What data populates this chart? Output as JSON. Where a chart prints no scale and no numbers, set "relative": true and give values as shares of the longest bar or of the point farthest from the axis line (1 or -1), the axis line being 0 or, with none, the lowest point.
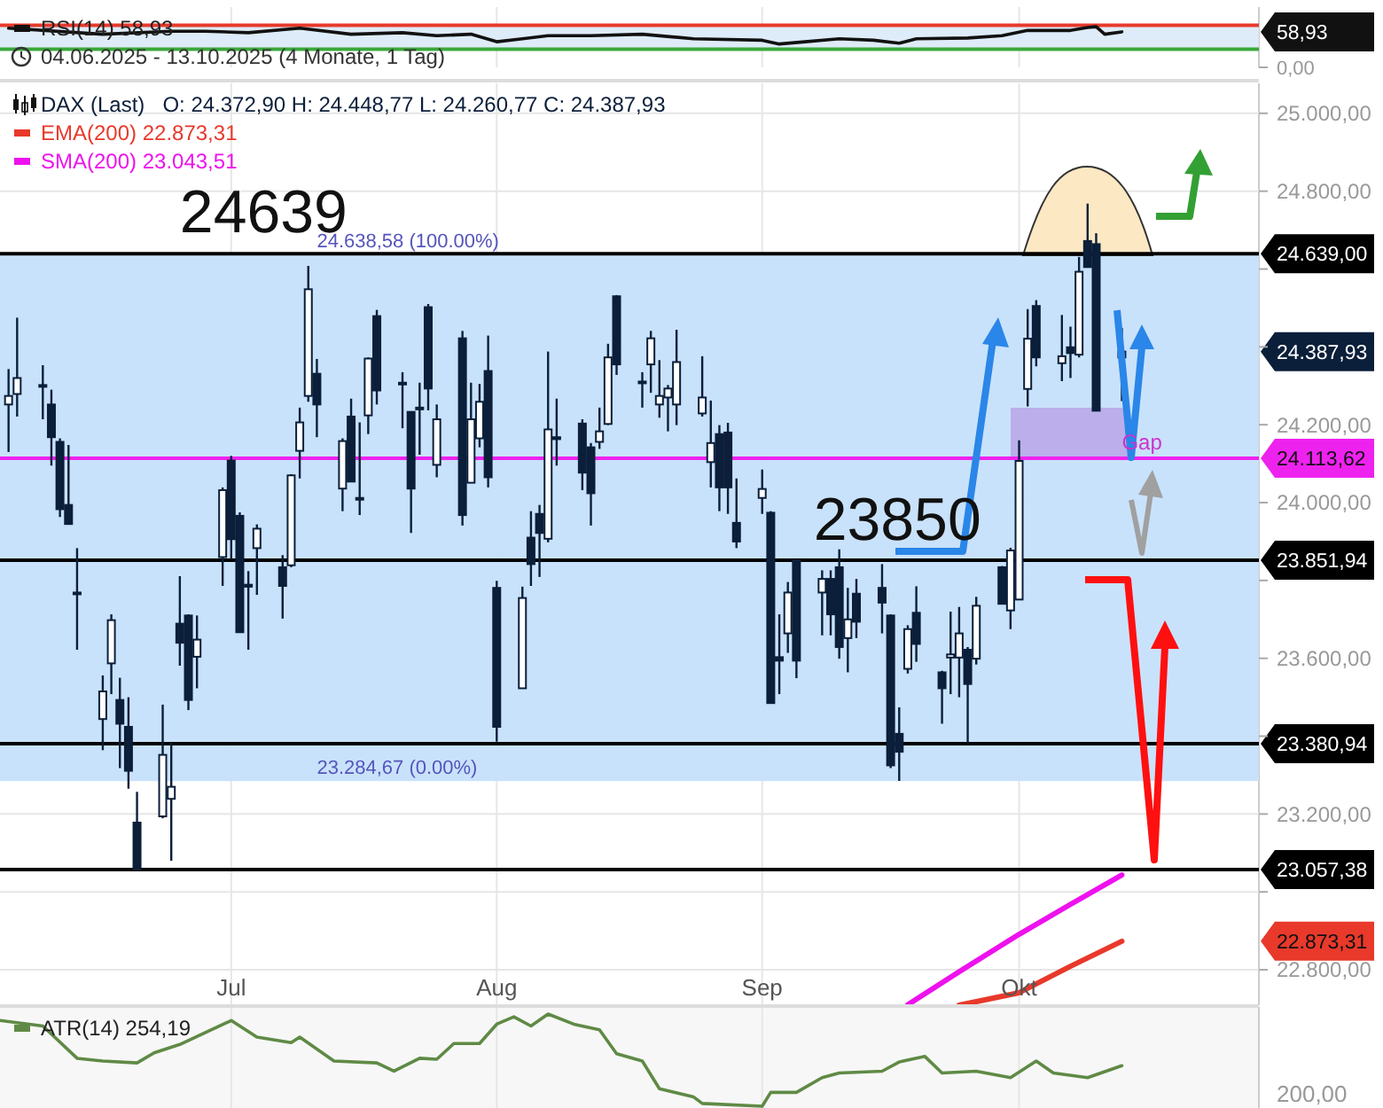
{
  "chart_data": [
    {
      "type": "line",
      "xlim": [
        "2025-06-04",
        "2025-10-29"
      ],
      "ylim": [
        0,
        100
      ],
      "yticks": [
        {
          "value": 0,
          "label": "0,00"
        },
        {
          "value": 58.93,
          "label": "58,93"
        }
      ],
      "xticks": [
        {
          "value": "2025-07-01",
          "label": null
        },
        {
          "value": "2025-08-01",
          "label": null
        },
        {
          "value": "2025-09-01",
          "label": null
        },
        {
          "value": "2025-10-01",
          "label": null
        }
      ],
      "tick_labels": "y",
      "grid": "x",
      "legend": "top left",
      "bands": [
        {
          "axis": "y",
          "from": 30,
          "to": 70,
          "color": "#dceaf8"
        }
      ],
      "ref_lines": [
        {
          "axis": "y",
          "value": 70,
          "color": "#e8392b"
        },
        {
          "axis": "y",
          "value": 30,
          "color": "#3aa83a"
        }
      ],
      "series": [
        {
          "name": "RSI(14)  58,93",
          "color": "#111111",
          "x": [
            "2025-06-05",
            "2025-06-16",
            "2025-06-24",
            "2025-06-28",
            "2025-07-03",
            "2025-07-09",
            "2025-07-15",
            "2025-07-21",
            "2025-07-25",
            "2025-07-29",
            "2025-08-01",
            "2025-08-04",
            "2025-08-07",
            "2025-08-12",
            "2025-08-18",
            "2025-08-24",
            "2025-09-01",
            "2025-09-03",
            "2025-09-06",
            "2025-09-10",
            "2025-09-14",
            "2025-09-17",
            "2025-09-19",
            "2025-09-25",
            "2025-09-29",
            "2025-10-02",
            "2025-10-07",
            "2025-10-09",
            "2025-10-10",
            "2025-10-11",
            "2025-10-13"
          ],
          "values": [
            65,
            55,
            60,
            60,
            57.5,
            65,
            55,
            57.5,
            52.5,
            55,
            42.5,
            47.5,
            52.5,
            52.5,
            55,
            47.5,
            45,
            38.75,
            42.5,
            47.5,
            45,
            40,
            47.5,
            48.75,
            52.5,
            61.25,
            61.25,
            66.25,
            67.5,
            55,
            58.93
          ]
        }
      ],
      "annotations": [
        "04.06.2025 - 13.10.2025   (4 Monate, 1 Tag)"
      ]
    },
    {
      "type": "candlestick",
      "xlim": [
        "2025-06-04",
        "2025-10-29"
      ],
      "ylim": [
        22709,
        25077
      ],
      "yticks": [
        {
          "value": 22800,
          "label": "22.800,00"
        },
        {
          "value": 22873.31,
          "label": "22.873,31"
        },
        {
          "value": 23000,
          "label": null
        },
        {
          "value": 23200,
          "label": "23.200,00"
        },
        {
          "value": 23400,
          "label": null
        },
        {
          "value": 23600,
          "label": "23.600,00"
        },
        {
          "value": 23800,
          "label": null
        },
        {
          "value": 24000,
          "label": "24.000,00"
        },
        {
          "value": 24200,
          "label": "24.200,00"
        },
        {
          "value": 24387.93,
          "label": "24.387,93"
        },
        {
          "value": 24400,
          "label": null
        },
        {
          "value": 24600,
          "label": null
        },
        {
          "value": 24800,
          "label": "24.800,00"
        },
        {
          "value": 25000,
          "label": "25.000,00"
        }
      ],
      "xticks": [
        {
          "value": "2025-07-01",
          "label": "Jul"
        },
        {
          "value": "2025-08-01",
          "label": "Aug"
        },
        {
          "value": "2025-09-01",
          "label": "Sep"
        },
        {
          "value": "2025-10-01",
          "label": "Okt"
        }
      ],
      "grid": true,
      "legend": "top left",
      "x": [
        "2025-06-05",
        "2025-06-06",
        "2025-06-09",
        "2025-06-10",
        "2025-06-11",
        "2025-06-12",
        "2025-06-13",
        "2025-06-16",
        "2025-06-17",
        "2025-06-18",
        "2025-06-19",
        "2025-06-20",
        "2025-06-23",
        "2025-06-24",
        "2025-06-25",
        "2025-06-26",
        "2025-06-27",
        "2025-06-30",
        "2025-07-01",
        "2025-07-02",
        "2025-07-03",
        "2025-07-04",
        "2025-07-07",
        "2025-07-08",
        "2025-07-09",
        "2025-07-10",
        "2025-07-11",
        "2025-07-14",
        "2025-07-15",
        "2025-07-16",
        "2025-07-17",
        "2025-07-18",
        "2025-07-21",
        "2025-07-22",
        "2025-07-23",
        "2025-07-24",
        "2025-07-25",
        "2025-07-28",
        "2025-07-29",
        "2025-07-30",
        "2025-07-31",
        "2025-08-01",
        "2025-08-04",
        "2025-08-05",
        "2025-08-06",
        "2025-08-07",
        "2025-08-08",
        "2025-08-11",
        "2025-08-12",
        "2025-08-13",
        "2025-08-14",
        "2025-08-15",
        "2025-08-18",
        "2025-08-19",
        "2025-08-20",
        "2025-08-21",
        "2025-08-22",
        "2025-08-25",
        "2025-08-26",
        "2025-08-27",
        "2025-08-28",
        "2025-08-29",
        "2025-09-01",
        "2025-09-02",
        "2025-09-03",
        "2025-09-04",
        "2025-09-05",
        "2025-09-08",
        "2025-09-09",
        "2025-09-10",
        "2025-09-11",
        "2025-09-12",
        "2025-09-15",
        "2025-09-16",
        "2025-09-17",
        "2025-09-18",
        "2025-09-19",
        "2025-09-22",
        "2025-09-23",
        "2025-09-24",
        "2025-09-25",
        "2025-09-26",
        "2025-09-29",
        "2025-09-30",
        "2025-10-01",
        "2025-10-02",
        "2025-10-03",
        "2025-10-06",
        "2025-10-07",
        "2025-10-08",
        "2025-10-09",
        "2025-10-10",
        "2025-10-13"
      ],
      "bands": [
        {
          "axis": "y",
          "from": 23284.67,
          "to": 24638.58,
          "color": "#c6e0fb"
        }
      ],
      "ref_lines": [
        {
          "axis": "y",
          "value": 24639,
          "label": "24.639,00",
          "color": "#000000"
        },
        {
          "axis": "y",
          "value": 24113.62,
          "label": "24.113,62",
          "color": "#ee22ee"
        },
        {
          "axis": "y",
          "value": 23851.94,
          "label": "23.851,94",
          "color": "#000000"
        },
        {
          "axis": "y",
          "value": 23380.94,
          "label": "23.380,94",
          "color": "#000000"
        },
        {
          "axis": "y",
          "value": 23057.38,
          "label": "23.057,38",
          "color": "#000000"
        }
      ],
      "series": [
        {
          "name": "DAX (Last)",
          "color": "#0b1f3a",
          "ohlc": [
            [
              24252,
              24343,
              24130,
              24274
            ],
            [
              24279,
              24475,
              24221,
              24320
            ],
            [
              24302,
              24353,
              24214,
              24300
            ],
            [
              24252,
              24290,
              24095,
              24168
            ],
            [
              24156,
              24165,
              23963,
              23983
            ],
            [
              23994,
              24148,
              23945,
              23945
            ],
            [
              23769,
              23883,
              23622,
              23765
            ],
            [
              23444,
              23556,
              23364,
              23515
            ],
            [
              23587,
              23713,
              23508,
              23698
            ],
            [
              23493,
              23550,
              23318,
              23432
            ],
            [
              23424,
              23500,
              23265,
              23311
            ],
            [
              23178,
              23257,
              23057,
              23057
            ],
            [
              23194,
              23481,
              23189,
              23352
            ],
            [
              23239,
              23383,
              23080,
              23270
            ],
            [
              23689,
              23811,
              23581,
              23640
            ],
            [
              23710,
              23713,
              23467,
              23493
            ],
            [
              23604,
              23710,
              23523,
              23648
            ],
            [
              23860,
              24039,
              23786,
              24032
            ],
            [
              24108,
              24120,
              23854,
              23906
            ],
            [
              23966,
              23975,
              23667,
              23667
            ],
            [
              23789,
              23824,
              23622,
              23784
            ],
            [
              23883,
              23944,
              23763,
              23933
            ],
            [
              23834,
              23865,
              23702,
              23786
            ],
            [
              23839,
              24073,
              23834,
              24070
            ],
            [
              24133,
              24244,
              24062,
              24206
            ],
            [
              24274,
              24608,
              24259,
              24548
            ],
            [
              24331,
              24369,
              24168,
              24252
            ],
            [
              24036,
              24165,
              23978,
              24158
            ],
            [
              24221,
              24267,
              24054,
              24054
            ],
            [
              24012,
              24206,
              23968,
              24008
            ],
            [
              24224,
              24373,
              24176,
              24370
            ],
            [
              24479,
              24495,
              24252,
              24288
            ],
            [
              24308,
              24335,
              24191,
              24306
            ],
            [
              24233,
              24233,
              23922,
              24036
            ],
            [
              24244,
              24308,
              24123,
              24240
            ],
            [
              24502,
              24510,
              24237,
              24293
            ],
            [
              24097,
              24252,
              24065,
              24214
            ],
            [
              24422,
              24441,
              23941,
              23968
            ],
            [
              24051,
              24308,
              24051,
              24214
            ],
            [
              24165,
              24305,
              24142,
              24259
            ],
            [
              24338,
              24429,
              24039,
              24065
            ],
            [
              23781,
              23799,
              23386,
              23424
            ],
            [
              23523,
              23784,
              23523,
              23755
            ],
            [
              23910,
              23978,
              23786,
              23842
            ],
            [
              23971,
              23994,
              23809,
              23922
            ],
            [
              23907,
              24388,
              23898,
              24188
            ],
            [
              24168,
              24267,
              24095,
              24163
            ],
            [
              24203,
              24214,
              24032,
              24077
            ],
            [
              24142,
              24153,
              23941,
              24024
            ],
            [
              24156,
              24244,
              24138,
              24183
            ],
            [
              24202,
              24408,
              24199,
              24373
            ],
            [
              24530,
              24533,
              24328,
              24355
            ],
            [
              24311,
              24335,
              24244,
              24308
            ],
            [
              24355,
              24441,
              24282,
              24422
            ],
            [
              24252,
              24366,
              24218,
              24274
            ],
            [
              24270,
              24302,
              24183,
              24293
            ],
            [
              24252,
              24444,
              24199,
              24361
            ],
            [
              24229,
              24376,
              24221,
              24270
            ],
            [
              24104,
              24262,
              24039,
              24153
            ],
            [
              24176,
              24199,
              23978,
              24039
            ],
            [
              24180,
              24205,
              23971,
              24039
            ],
            [
              23948,
              24062,
              23883,
              23900
            ],
            [
              24012,
              24085,
              23971,
              24035
            ],
            [
              23974,
              23978,
              23485,
              23485
            ],
            [
              23603,
              23713,
              23508,
              23594
            ],
            [
              23664,
              23796,
              23614,
              23769
            ],
            [
              23852,
              23852,
              23549,
              23594
            ],
            [
              23769,
              23826,
              23659,
              23804
            ],
            [
              23804,
              23826,
              23659,
              23713
            ],
            [
              23834,
              23880,
              23599,
              23629
            ],
            [
              23652,
              23781,
              23564,
              23700
            ],
            [
              23766,
              23804,
              23652,
              23694
            ],
            [
              23781,
              23842,
              23664,
              23743
            ],
            [
              23710,
              23713,
              23318,
              23325
            ],
            [
              23406,
              23474,
              23285,
              23360
            ],
            [
              23573,
              23685,
              23561,
              23675
            ],
            [
              23717,
              23785,
              23591,
              23637
            ],
            [
              23564,
              23568,
              23432,
              23523
            ],
            [
              23602,
              23720,
              23508,
              23610
            ],
            [
              23602,
              23732,
              23500,
              23664
            ],
            [
              23622,
              23629,
              23382,
              23534
            ],
            [
              23599,
              23758,
              23584,
              23735
            ],
            [
              23834,
              23837,
              23740,
              23740
            ],
            [
              23723,
              23884,
              23675,
              23877
            ],
            [
              23751,
              24160,
              23751,
              24107
            ],
            [
              24292,
              24497,
              24247,
              24421
            ],
            [
              24505,
              24520,
              24350,
              24373
            ],
            [
              24358,
              24482,
              24312,
              24376
            ],
            [
              24399,
              24452,
              24320,
              24384
            ],
            [
              24380,
              24631,
              24373,
              24593
            ],
            [
              24672,
              24768,
              24604,
              24605
            ],
            [
              24664,
              24692,
              24236,
              24236
            ],
            [
              24372.9,
              24448.77,
              24260.77,
              24387.93
            ]
          ]
        },
        {
          "name": "EMA(200)  22.873,31",
          "type": "line",
          "color": "#e8392b",
          "x": [
            "2025-09-24",
            "2025-10-01",
            "2025-10-07",
            "2025-10-13"
          ],
          "values": [
            22709,
            22741,
            22809,
            22873.31
          ]
        },
        {
          "name": "SMA(200)  23.043,51",
          "type": "line",
          "color": "#ee11ee",
          "x": [
            "2025-09-18",
            "2025-09-24",
            "2025-10-01",
            "2025-10-07",
            "2025-10-13"
          ],
          "values": [
            22710,
            22795,
            22891,
            22968,
            23043.51
          ]
        }
      ],
      "annotations": [
        "O: 24.372,90   H: 24.448,77   L: 24.260,77   C: 24.387,93",
        {
          "text": "24639",
          "x": "2025-06-25",
          "y": 24639
        },
        {
          "text": "23850",
          "x": "2025-09-07",
          "y": 23850
        },
        {
          "text": "24.638,58 (100.00%)",
          "x": "2025-07-11",
          "y": 24638.58
        },
        {
          "text": "23.284,67 (0.00%)",
          "x": "2025-07-11",
          "y": 23284.67
        },
        {
          "text": "Gap",
          "x": "2025-10-13",
          "y": 24113.62
        }
      ]
    },
    {
      "type": "line",
      "relative": true,
      "xlim": [
        "2025-06-04",
        "2025-10-29"
      ],
      "xticks": [
        {
          "value": "2025-07-01",
          "label": null
        },
        {
          "value": "2025-08-01",
          "label": null
        },
        {
          "value": "2025-09-01",
          "label": null
        },
        {
          "value": "2025-10-01",
          "label": null
        }
      ],
      "tick_labels": "y",
      "grid": "x",
      "legend": "top left",
      "annotations": [
        "200,00"
      ],
      "series": [
        {
          "name": "ATR(14)  254,19",
          "color": "#5f8a45",
          "x": [
            "2025-06-04",
            "2025-06-09",
            "2025-06-13",
            "2025-06-16",
            "2025-06-20",
            "2025-06-22",
            "2025-06-25",
            "2025-07-01",
            "2025-07-04",
            "2025-07-08",
            "2025-07-09",
            "2025-07-13",
            "2025-07-18",
            "2025-07-20",
            "2025-07-23",
            "2025-07-25",
            "2025-07-27",
            "2025-07-30",
            "2025-08-01",
            "2025-08-03",
            "2025-08-05",
            "2025-08-07",
            "2025-08-10",
            "2025-08-13",
            "2025-08-15",
            "2025-08-18",
            "2025-08-20",
            "2025-08-24",
            "2025-08-25",
            "2025-09-01",
            "2025-09-02",
            "2025-09-05",
            "2025-09-08",
            "2025-09-10",
            "2025-09-15",
            "2025-09-17",
            "2025-09-20",
            "2025-09-22",
            "2025-09-26",
            "2025-09-30",
            "2025-10-03",
            "2025-10-05",
            "2025-10-09",
            "2025-10-13"
          ],
          "values": [
            0.93,
            0.87,
            0.52,
            0.49,
            0.47,
            0.58,
            0.67,
            0.93,
            0.75,
            0.69,
            0.75,
            0.49,
            0.47,
            0.38,
            0.52,
            0.51,
            0.68,
            0.68,
            0.89,
            0.97,
            0.87,
            1,
            0.89,
            0.83,
            0.57,
            0.49,
            0.19,
            0.1,
            0.03,
            0,
            0.15,
            0.15,
            0.31,
            0.36,
            0.38,
            0.48,
            0.54,
            0.36,
            0.38,
            0.31,
            0.49,
            0.36,
            0.31,
            0.44
          ]
        }
      ]
    }
  ]
}
